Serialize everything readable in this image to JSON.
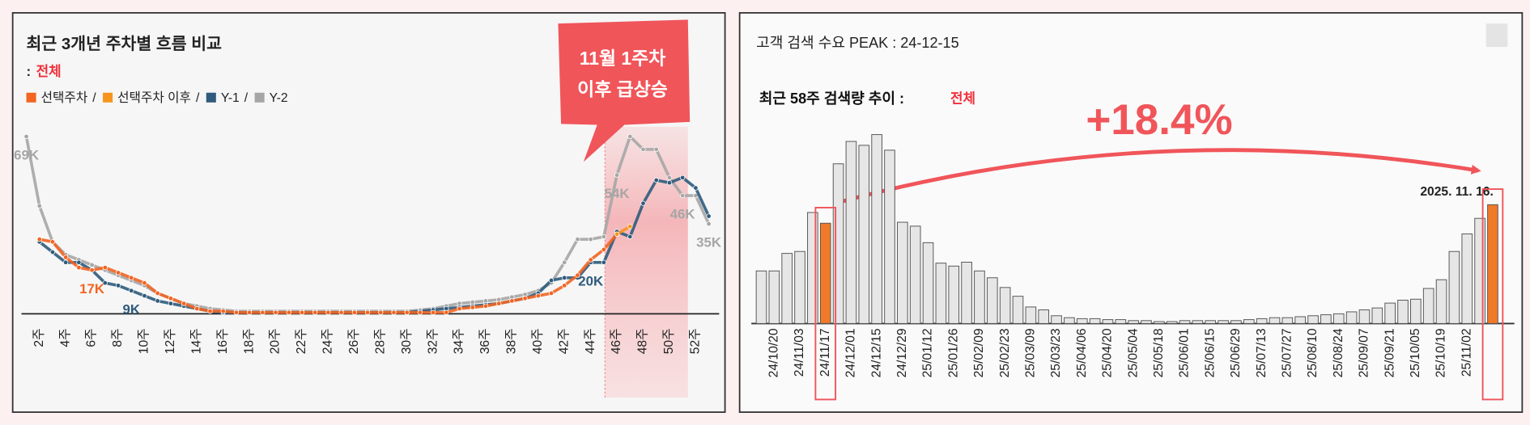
{
  "chart_data": [
    {
      "type": "line",
      "title": "최근 3개년 주차별 흐름 비교",
      "subtitle_prefix": ":",
      "subtitle": "전체",
      "legend_separator": "/",
      "callout": [
        "11월 1주차",
        "이후 급상승"
      ],
      "categories": [
        null,
        "2주",
        null,
        "4주",
        null,
        "6주",
        null,
        "8주",
        null,
        "10주",
        null,
        "12주",
        null,
        "14주",
        null,
        "16주",
        null,
        "18주",
        null,
        "20주",
        null,
        "22주",
        null,
        "24주",
        null,
        "26주",
        null,
        "28주",
        null,
        "30주",
        null,
        "32주",
        null,
        "34주",
        null,
        "36주",
        null,
        "38주",
        null,
        "40주",
        null,
        "42주",
        null,
        "44주",
        null,
        "46주",
        null,
        "48주",
        null,
        "50주",
        null,
        "52주",
        null
      ],
      "series": [
        {
          "name": "Y-2",
          "color": "#a6a6a6",
          "values": [
            69,
            42,
            28,
            23,
            21,
            19,
            17,
            15,
            13,
            11,
            8,
            6,
            4,
            3,
            2,
            1.5,
            1,
            1,
            1,
            1,
            1,
            1,
            1,
            1,
            1,
            1,
            1,
            1,
            1,
            1,
            1.5,
            2,
            3,
            4,
            4.5,
            5,
            5.5,
            6.5,
            7.5,
            9,
            12,
            20,
            29,
            29,
            30,
            54,
            69,
            64,
            64,
            53,
            46,
            46,
            35
          ],
          "value_labels": [
            "69K",
            null,
            null,
            null,
            null,
            null,
            null,
            null,
            null,
            null,
            null,
            null,
            null,
            null,
            null,
            null,
            null,
            null,
            null,
            null,
            null,
            null,
            null,
            null,
            null,
            null,
            null,
            null,
            null,
            null,
            null,
            null,
            null,
            null,
            null,
            null,
            null,
            null,
            null,
            null,
            null,
            null,
            null,
            null,
            null,
            "54K",
            null,
            null,
            null,
            null,
            "46K",
            null,
            "35K"
          ]
        },
        {
          "name": "Y-1",
          "color": "#2f5b7c",
          "values": [
            null,
            28,
            24,
            20,
            20,
            17,
            12,
            11,
            9,
            7,
            5,
            4,
            3,
            2,
            1,
            0.5,
            0.5,
            0.5,
            0.5,
            0.5,
            0.5,
            0.5,
            0.5,
            0.5,
            0.5,
            0.5,
            0.5,
            0.5,
            0.5,
            0.5,
            1,
            1.5,
            2,
            2.5,
            3,
            3.5,
            4,
            5,
            6,
            8,
            13,
            14,
            14,
            20,
            20,
            32,
            30,
            43,
            52,
            51,
            53,
            49,
            38
          ],
          "value_labels": [
            null,
            null,
            null,
            null,
            null,
            null,
            null,
            null,
            "9K",
            null,
            null,
            null,
            null,
            null,
            null,
            null,
            null,
            null,
            null,
            null,
            null,
            null,
            null,
            null,
            null,
            null,
            null,
            null,
            null,
            null,
            null,
            null,
            null,
            null,
            null,
            null,
            null,
            null,
            null,
            null,
            null,
            null,
            null,
            "20K",
            null,
            null,
            null,
            null,
            null,
            null,
            null,
            null,
            null
          ]
        },
        {
          "name": "선택주차",
          "color": "#f26522",
          "values": [
            null,
            29,
            28,
            22,
            18,
            17,
            18,
            16,
            14,
            12,
            8,
            6,
            4,
            2,
            1,
            1,
            0.5,
            0.5,
            0.5,
            0.5,
            0.5,
            0.5,
            0.5,
            0.5,
            0.5,
            0.5,
            0.5,
            0.5,
            0.5,
            0.5,
            0.5,
            0.5,
            0.5,
            2,
            2.5,
            3,
            4,
            5,
            6,
            7,
            8,
            11,
            15,
            21,
            25,
            31,
            null,
            null,
            null,
            null,
            null,
            null,
            null
          ],
          "value_labels": [
            null,
            null,
            null,
            null,
            null,
            "17K",
            null,
            null,
            null,
            null,
            null,
            null,
            null,
            null,
            null,
            null,
            null,
            null,
            null,
            null,
            null,
            null,
            null,
            null,
            null,
            null,
            null,
            null,
            null,
            null,
            null,
            null,
            null,
            null,
            null,
            null,
            null,
            null,
            null,
            null,
            null,
            null,
            null,
            null,
            null,
            null,
            null,
            null,
            null,
            null,
            null,
            null,
            null
          ]
        },
        {
          "name": "선택주차 이후",
          "color": "#f7941d",
          "values": [
            null,
            null,
            null,
            null,
            null,
            null,
            null,
            null,
            null,
            null,
            null,
            null,
            null,
            null,
            null,
            null,
            null,
            null,
            null,
            null,
            null,
            null,
            null,
            null,
            null,
            null,
            null,
            null,
            null,
            null,
            null,
            null,
            null,
            null,
            null,
            null,
            null,
            null,
            null,
            null,
            null,
            null,
            null,
            null,
            null,
            31,
            34,
            null,
            null,
            null,
            null,
            null,
            null
          ]
        }
      ],
      "legend_order": [
        "선택주차",
        "선택주차 이후",
        "Y-1",
        "Y-2"
      ]
    },
    {
      "type": "bar",
      "title": "고객 검색 수요 PEAK : 24-12-15",
      "subtitle": "최근 58주 검색량 추이 :",
      "subtitle_highlight": "전체",
      "annotations": {
        "change": "+18.4%",
        "last_date": "2025. 11. 16."
      },
      "categories": [
        null,
        "24/10/20",
        null,
        "24/11/03",
        null,
        "24/11/17",
        null,
        "24/12/01",
        null,
        "24/12/15",
        null,
        "24/12/29",
        null,
        "25/01/12",
        null,
        "25/01/26",
        null,
        "25/02/09",
        null,
        "25/02/23",
        null,
        "25/03/09",
        null,
        "25/03/23",
        null,
        "25/04/06",
        null,
        "25/04/20",
        null,
        "25/05/04",
        null,
        "25/05/18",
        null,
        "25/06/01",
        null,
        "25/06/15",
        null,
        "25/06/29",
        null,
        "25/07/13",
        null,
        "25/07/27",
        null,
        "25/08/10",
        null,
        "25/08/24",
        null,
        "25/09/07",
        null,
        "25/09/21",
        null,
        "25/10/05",
        null,
        "25/10/19",
        null,
        "25/11/02",
        null,
        null
      ],
      "values": [
        54,
        54,
        72,
        74,
        114,
        103,
        164,
        187,
        183,
        194,
        178,
        104,
        100,
        83,
        62,
        59,
        63,
        54,
        47,
        37,
        28,
        17,
        14,
        8,
        6,
        5,
        5,
        4,
        4,
        3,
        3,
        2,
        2,
        3,
        3,
        3,
        3,
        3,
        4,
        5,
        6,
        6,
        7,
        8,
        9,
        10,
        12,
        14,
        16,
        21,
        24,
        25,
        36,
        45,
        74,
        92,
        108,
        122
      ],
      "colors": [
        "#e6e6e6",
        "#e6e6e6",
        "#e6e6e6",
        "#e6e6e6",
        "#e6e6e6",
        "#f07a2a",
        "#e6e6e6",
        "#e6e6e6",
        "#e6e6e6",
        "#e6e6e6",
        "#e6e6e6",
        "#e6e6e6",
        "#e6e6e6",
        "#e6e6e6",
        "#e6e6e6",
        "#e6e6e6",
        "#e6e6e6",
        "#e6e6e6",
        "#e6e6e6",
        "#e6e6e6",
        "#e6e6e6",
        "#e6e6e6",
        "#e6e6e6",
        "#e6e6e6",
        "#e6e6e6",
        "#e6e6e6",
        "#e6e6e6",
        "#e6e6e6",
        "#e6e6e6",
        "#e6e6e6",
        "#e6e6e6",
        "#e6e6e6",
        "#e6e6e6",
        "#e6e6e6",
        "#e6e6e6",
        "#e6e6e6",
        "#e6e6e6",
        "#e6e6e6",
        "#e6e6e6",
        "#e6e6e6",
        "#e6e6e6",
        "#e6e6e6",
        "#e6e6e6",
        "#e6e6e6",
        "#e6e6e6",
        "#e6e6e6",
        "#e6e6e6",
        "#e6e6e6",
        "#e6e6e6",
        "#e6e6e6",
        "#e6e6e6",
        "#e6e6e6",
        "#e6e6e6",
        "#e6e6e6",
        "#e6e6e6",
        "#e6e6e6",
        "#e6e6e6",
        "#f07a2a"
      ]
    }
  ]
}
